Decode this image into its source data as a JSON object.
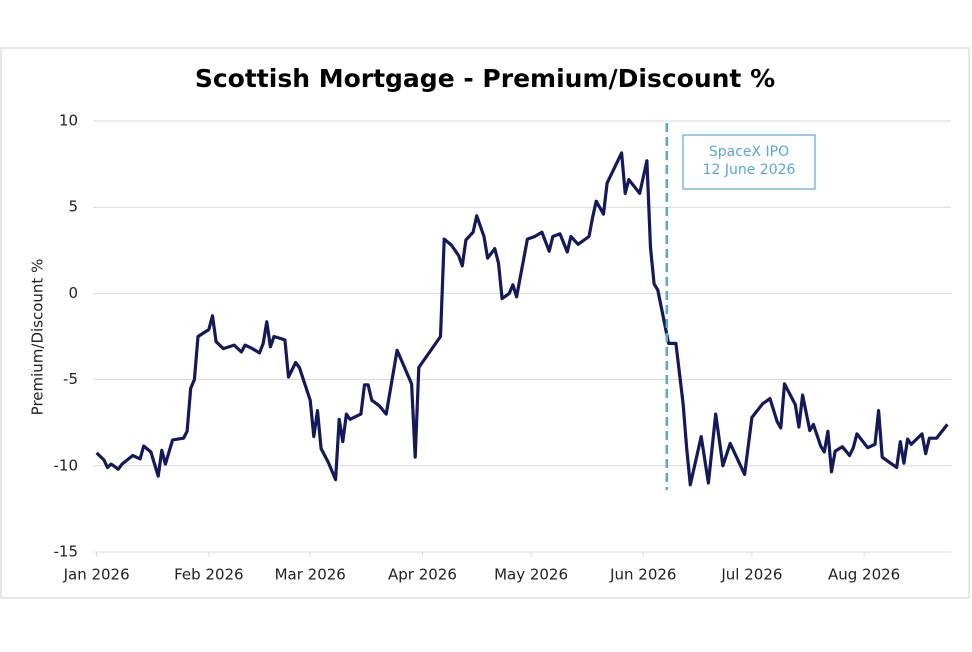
{
  "chart_data": {
    "type": "line",
    "title": "Scottish Mortgage - Premium/Discount %",
    "y_label": "Premium/Discount %",
    "color": "#14195a",
    "x": [
      0,
      2,
      3,
      4,
      6,
      7,
      10,
      12,
      13,
      15,
      17,
      18,
      19,
      21,
      24,
      25,
      26,
      27,
      28,
      31,
      32,
      33,
      35,
      38,
      40,
      41,
      43,
      45,
      46,
      47,
      48,
      49,
      52,
      53,
      55,
      56,
      59,
      60,
      61,
      62,
      64,
      66,
      67,
      68,
      69,
      70,
      73,
      74,
      75,
      76,
      78,
      80,
      83,
      87,
      88,
      89,
      95,
      96,
      98,
      100,
      101,
      102,
      104,
      105,
      107,
      108,
      110,
      111,
      112,
      114,
      115,
      116,
      119,
      121,
      123,
      125,
      126,
      128,
      130,
      131,
      133,
      136,
      137,
      138,
      140,
      141,
      145,
      146,
      147,
      150,
      152,
      153,
      154,
      155,
      158,
      160,
      162,
      163,
      164,
      167,
      169,
      171,
      173,
      175,
      179,
      181,
      184,
      186,
      188,
      189,
      190,
      193,
      194,
      195,
      197,
      198,
      200,
      201,
      202,
      203,
      204,
      206,
      208,
      209,
      210,
      213,
      215,
      216,
      217,
      221,
      222,
      223,
      224,
      225,
      228,
      229,
      230,
      232,
      235
    ],
    "values": [
      -9.25,
      -9.66,
      -10.1,
      -9.9,
      -10.2,
      -9.9,
      -9.4,
      -9.6,
      -8.85,
      -9.2,
      -10.6,
      -9.1,
      -9.9,
      -8.5,
      -8.4,
      -8.0,
      -5.5,
      -5.0,
      -2.5,
      -2.1,
      -1.3,
      -2.8,
      -3.2,
      -3.0,
      -3.4,
      -3.0,
      -3.2,
      -3.45,
      -2.9,
      -1.65,
      -3.1,
      -2.5,
      -2.7,
      -4.85,
      -4.0,
      -4.3,
      -6.2,
      -8.3,
      -6.8,
      -9.0,
      -9.8,
      -10.8,
      -7.3,
      -8.6,
      -7.0,
      -7.3,
      -7.0,
      -5.3,
      -5.3,
      -6.2,
      -6.5,
      -7.0,
      -3.3,
      -5.25,
      -9.5,
      -4.3,
      -2.5,
      3.15,
      2.8,
      2.2,
      1.6,
      3.1,
      3.55,
      4.5,
      3.3,
      2.05,
      2.6,
      1.75,
      -0.3,
      0,
      0.5,
      -0.2,
      3.15,
      3.3,
      3.55,
      2.45,
      3.3,
      3.45,
      2.4,
      3.3,
      2.85,
      3.3,
      4.4,
      5.35,
      4.6,
      6.4,
      8.15,
      5.8,
      6.6,
      5.8,
      7.7,
      2.65,
      0.55,
      0.2,
      -2.9,
      -2.9,
      -6.4,
      -9.0,
      -11.1,
      -8.3,
      -11.0,
      -7.0,
      -10.0,
      -8.7,
      -10.5,
      -7.2,
      -6.4,
      -6.1,
      -7.45,
      -7.8,
      -5.25,
      -6.45,
      -7.75,
      -5.9,
      -7.95,
      -7.6,
      -8.85,
      -9.2,
      -8.0,
      -10.35,
      -9.15,
      -8.9,
      -9.4,
      -8.95,
      -8.15,
      -8.95,
      -8.75,
      -6.8,
      -9.5,
      -10.1,
      -8.6,
      -9.85,
      -8.45,
      -8.75,
      -8.15,
      -9.3,
      -8.4,
      -8.4,
      -7.6
    ],
    "xlim": [
      -1,
      236
    ],
    "xticks": [
      {
        "value": 0,
        "label": "Jan 2026"
      },
      {
        "value": 31,
        "label": "Feb 2026"
      },
      {
        "value": 59,
        "label": "Mar 2026"
      },
      {
        "value": 90,
        "label": "Apr 2026"
      },
      {
        "value": 120,
        "label": "May 2026"
      },
      {
        "value": 151,
        "label": "Jun 2026"
      },
      {
        "value": 181,
        "label": "Jul 2026"
      },
      {
        "value": 212,
        "label": "Aug 2026"
      }
    ],
    "ylim": [
      -15,
      10
    ],
    "yticks": [
      10,
      5,
      0,
      -5,
      -10,
      -15
    ],
    "grid": true,
    "annotation": {
      "x": 157.5,
      "lines": [
        "SpaceX IPO",
        "12 June 2026"
      ],
      "color": "#5aa6d6"
    }
  }
}
